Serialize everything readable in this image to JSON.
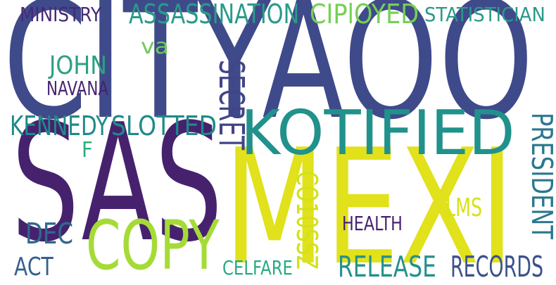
{
  "words": [
    {
      "id": "cityaoo",
      "text": "CITYAOO",
      "color": "#3f4a8a"
    },
    {
      "id": "sas",
      "text": "SAS",
      "color": "#46226e"
    },
    {
      "id": "mexi",
      "text": "MEXI",
      "color": "#e1e11c"
    },
    {
      "id": "kotified",
      "text": "KOTIFIED",
      "color": "#21918c"
    },
    {
      "id": "copy",
      "text": "COPY",
      "color": "#a5db36"
    },
    {
      "id": "assassination",
      "text": "ASSASSINATION",
      "color": "#2a9a8a"
    },
    {
      "id": "cipioyed",
      "text": "CIPlOYED",
      "color": "#75d054"
    },
    {
      "id": "ministry",
      "text": "MINISTRY",
      "color": "#482878"
    },
    {
      "id": "statistician",
      "text": "STATISTICIAN",
      "color": "#2a9a8a"
    },
    {
      "id": "va",
      "text": "va",
      "color": "#6ccd5a"
    },
    {
      "id": "john",
      "text": "JOHN",
      "color": "#2da084"
    },
    {
      "id": "navana",
      "text": "NAVANA",
      "color": "#46226e"
    },
    {
      "id": "secret",
      "text": "SECRET",
      "color": "#414487"
    },
    {
      "id": "kennedy",
      "text": "KENNEDY",
      "color": "#1f8a8a"
    },
    {
      "id": "slotted",
      "text": "SLOTTED",
      "color": "#1f8a8a"
    },
    {
      "id": "f",
      "text": "F",
      "color": "#29af7f"
    },
    {
      "id": "president",
      "text": "PRESIDENT",
      "color": "#2a788e"
    },
    {
      "id": "co10ssz",
      "text": "CO10SSZ",
      "color": "#d2e21b"
    },
    {
      "id": "lms",
      "text": "LMS",
      "color": "#d8e219"
    },
    {
      "id": "dec",
      "text": "DEC",
      "color": "#31688e"
    },
    {
      "id": "health",
      "text": "HEALTH",
      "color": "#46226e"
    },
    {
      "id": "act",
      "text": "ACT",
      "color": "#35608d"
    },
    {
      "id": "celfare",
      "text": "CELFARE",
      "color": "#25ab82"
    },
    {
      "id": "release",
      "text": "RELEASE",
      "color": "#25918c"
    },
    {
      "id": "records",
      "text": "RECORDS",
      "color": "#3b528b"
    }
  ]
}
